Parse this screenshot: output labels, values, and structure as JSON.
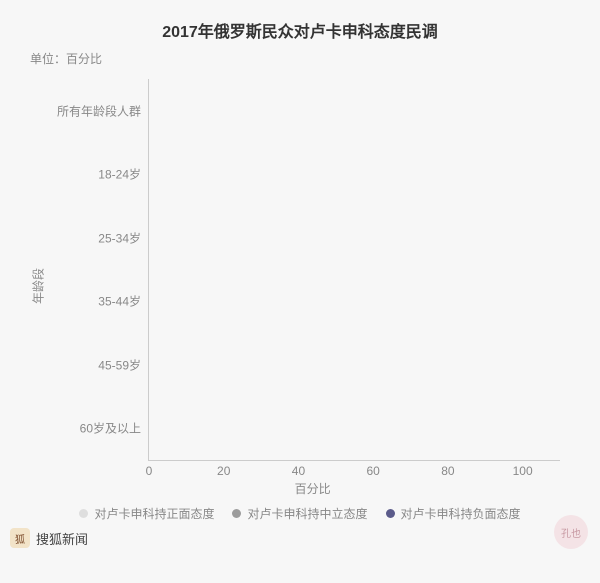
{
  "chart": {
    "type": "bar",
    "title": "2017年俄罗斯民众对卢卡申科态度民调",
    "title_fontsize": 16,
    "title_color": "#333333",
    "unit_label": "单位：百分比",
    "ylabel": "年龄段",
    "xlabel": "百分比",
    "label_fontsize": 12,
    "label_color": "#888888",
    "background_color": "#f7f7f7",
    "axis_color": "#cccccc",
    "categories": [
      "所有年龄段人群",
      "18-24岁",
      "25-34岁",
      "35-44岁",
      "45-59岁",
      "60岁及以上"
    ],
    "xlim": [
      0,
      110
    ],
    "xtick_step": 20,
    "xticks": [
      0,
      20,
      40,
      60,
      80,
      100
    ],
    "series": [
      {
        "name": "对卢卡申科持正面态度",
        "color": "#dedede",
        "values": [
          null,
          null,
          null,
          null,
          null,
          null
        ]
      },
      {
        "name": "对卢卡申科持中立态度",
        "color": "#9c9c9c",
        "values": [
          null,
          null,
          null,
          null,
          null,
          null
        ]
      },
      {
        "name": "对卢卡申科持负面态度",
        "color": "#5b5b8a",
        "values": [
          null,
          null,
          null,
          null,
          null,
          null
        ]
      }
    ]
  },
  "footer": {
    "source_label": "搜狐新闻",
    "badge_text": "狐",
    "badge_bg": "#f2e3c8"
  },
  "watermark": {
    "text": "孔也",
    "bg": "#f3d7dc"
  }
}
